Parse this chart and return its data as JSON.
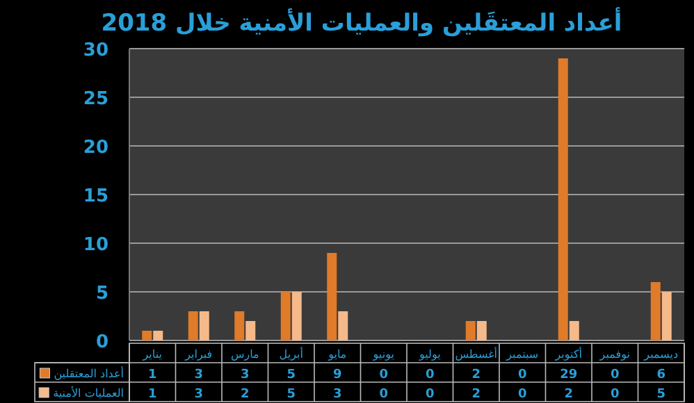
{
  "chart_data": {
    "type": "bar",
    "title": "أعداد المعتقَلين والعمليات الأمنية خلال 2018",
    "categories": [
      "يناير",
      "فبراير",
      "مارس",
      "أبريل",
      "مايو",
      "يونيو",
      "يوليو",
      "أغسطس",
      "سبتمبر",
      "أكتوبر",
      "نوفمبر",
      "ديسمبر"
    ],
    "series": [
      {
        "name": "أعداد المعتقلين",
        "color": "#e07b2a",
        "values": [
          1,
          3,
          3,
          5,
          9,
          0,
          0,
          2,
          0,
          29,
          0,
          6
        ]
      },
      {
        "name": "العمليات الأمنية",
        "color": "#f5b98a",
        "values": [
          1,
          3,
          2,
          5,
          3,
          0,
          0,
          2,
          0,
          2,
          0,
          5
        ]
      }
    ],
    "ylim": [
      0,
      30
    ],
    "yticks": [
      0,
      5,
      10,
      15,
      20,
      25,
      30
    ],
    "grid": "y",
    "data_labels": true,
    "legend": "bottom left"
  }
}
